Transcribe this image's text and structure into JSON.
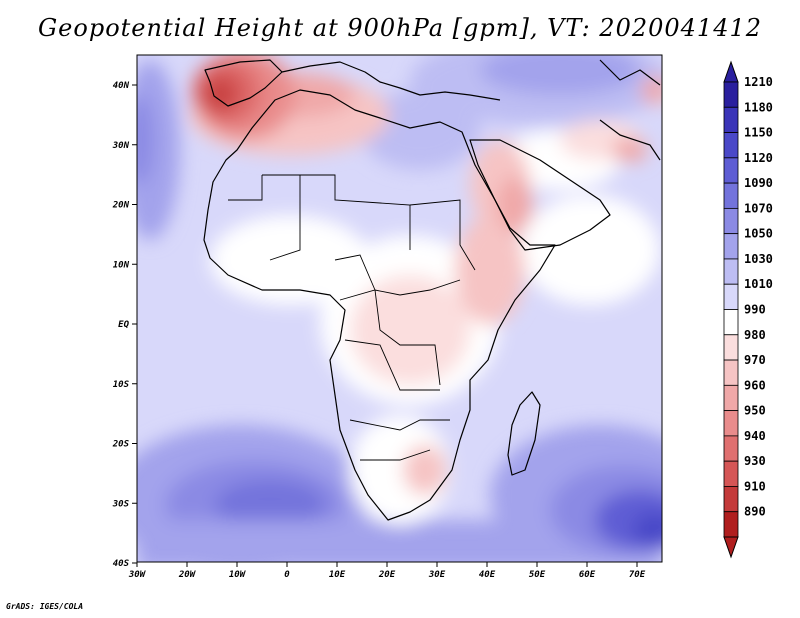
{
  "title": "Geopotential Height at 900hPa [gpm], VT: 2020041412",
  "credit": "GrADS: IGES/COLA",
  "axes": {
    "lon_ticks": [
      "30W",
      "20W",
      "10W",
      "0",
      "10E",
      "20E",
      "30E",
      "40E",
      "50E",
      "60E",
      "70E"
    ],
    "lat_ticks": [
      "40N",
      "30N",
      "20N",
      "10N",
      "EQ",
      "10S",
      "20S",
      "30S",
      "40S"
    ]
  },
  "colorbar": {
    "labels": [
      "1210",
      "1180",
      "1150",
      "1120",
      "1090",
      "1070",
      "1050",
      "1030",
      "1010",
      "990",
      "980",
      "970",
      "960",
      "950",
      "940",
      "930",
      "910",
      "890"
    ],
    "colors": [
      "#2a1f9e",
      "#3a34b8",
      "#4a48c8",
      "#5e5dd4",
      "#7373dc",
      "#8b8ae4",
      "#a3a3ec",
      "#bdbdf3",
      "#d8d8fa",
      "#ffffff",
      "#fbdede",
      "#f6c4c4",
      "#f0a8a8",
      "#e98c8c",
      "#e07070",
      "#d55656",
      "#c43a3a",
      "#b01e1e"
    ]
  },
  "map": {
    "domain": "Africa and surrounding regions",
    "lon_range": [
      -30,
      75
    ],
    "lat_range": [
      -40,
      45
    ],
    "variable": "900hPa geopotential height",
    "units": "gpm"
  }
}
